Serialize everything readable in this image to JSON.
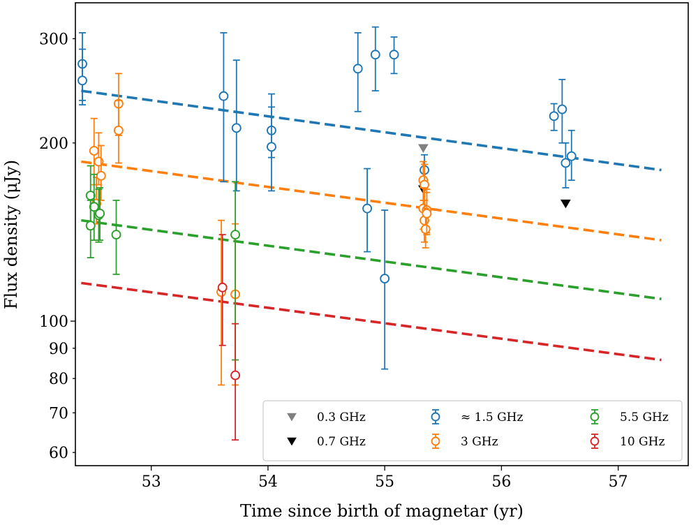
{
  "chart_data": {
    "type": "scatter",
    "title": "",
    "xlabel": "Time since birth of magnetar (yr)",
    "ylabel": "Flux density (μJy)",
    "yscale": "log",
    "xlim": [
      52.35,
      57.6
    ],
    "ylim": [
      57,
      345
    ],
    "xticks": [
      53,
      54,
      55,
      56,
      57
    ],
    "xtick_labels": [
      "53",
      "54",
      "55",
      "56",
      "57"
    ],
    "yticks": [
      60,
      70,
      80,
      90,
      100,
      200,
      300
    ],
    "ytick_labels": [
      "60",
      "70",
      "80",
      "90",
      "100",
      "200",
      "300"
    ],
    "grid": false,
    "legend_position": "lower-right",
    "series": [
      {
        "name": "0.3 GHz",
        "color": "#808080",
        "marker": "triangle-down",
        "kind": "upper_limit",
        "points": [
          {
            "x": 55.33,
            "y": 196
          }
        ]
      },
      {
        "name": "0.7 GHz",
        "color": "#000000",
        "marker": "triangle-down",
        "kind": "upper_limit",
        "points": [
          {
            "x": 55.33,
            "y": 167
          },
          {
            "x": 56.55,
            "y": 158
          }
        ]
      },
      {
        "name": "≈ 1.5 GHz",
        "color": "#1f77b4",
        "marker": "circle-open",
        "kind": "errorbar",
        "fit": [
          [
            52.4,
            245
          ],
          [
            57.37,
            180
          ]
        ],
        "points": [
          {
            "x": 52.41,
            "y": 272,
            "lo": 236,
            "hi": 288
          },
          {
            "x": 52.41,
            "y": 255,
            "lo": 232,
            "hi": 307
          },
          {
            "x": 53.62,
            "y": 240,
            "lo": 172,
            "hi": 307
          },
          {
            "x": 53.73,
            "y": 212,
            "lo": 166,
            "hi": 276
          },
          {
            "x": 54.03,
            "y": 210,
            "lo": 189,
            "hi": 242
          },
          {
            "x": 54.03,
            "y": 197,
            "lo": 166,
            "hi": 230
          },
          {
            "x": 54.77,
            "y": 267,
            "lo": 226,
            "hi": 307
          },
          {
            "x": 54.85,
            "y": 155,
            "lo": 131,
            "hi": 181
          },
          {
            "x": 54.92,
            "y": 282,
            "lo": 245,
            "hi": 314
          },
          {
            "x": 55.0,
            "y": 118,
            "lo": 83,
            "hi": 154
          },
          {
            "x": 55.08,
            "y": 282,
            "lo": 262,
            "hi": 302
          },
          {
            "x": 55.34,
            "y": 180,
            "lo": 169,
            "hi": 191
          },
          {
            "x": 56.45,
            "y": 222,
            "lo": 210,
            "hi": 233
          },
          {
            "x": 56.52,
            "y": 228,
            "lo": 200,
            "hi": 256
          },
          {
            "x": 56.55,
            "y": 185,
            "lo": 168,
            "hi": 200
          },
          {
            "x": 56.6,
            "y": 190,
            "lo": 173,
            "hi": 210
          }
        ]
      },
      {
        "name": "3 GHz",
        "color": "#ff7f0e",
        "marker": "circle-open",
        "kind": "errorbar",
        "fit": [
          [
            52.4,
            186
          ],
          [
            57.37,
            137
          ]
        ],
        "points": [
          {
            "x": 52.51,
            "y": 194,
            "lo": 170,
            "hi": 220
          },
          {
            "x": 52.53,
            "y": 158,
            "lo": 146,
            "hi": 175
          },
          {
            "x": 52.55,
            "y": 186,
            "lo": 170,
            "hi": 208
          },
          {
            "x": 52.57,
            "y": 176,
            "lo": 160,
            "hi": 198
          },
          {
            "x": 52.72,
            "y": 233,
            "lo": 206,
            "hi": 262
          },
          {
            "x": 52.72,
            "y": 210,
            "lo": 185,
            "hi": 236
          },
          {
            "x": 53.6,
            "y": 112,
            "lo": 78,
            "hi": 148
          },
          {
            "x": 53.72,
            "y": 111,
            "lo": 78,
            "hi": 146
          },
          {
            "x": 55.33,
            "y": 173,
            "lo": 160,
            "hi": 186
          },
          {
            "x": 55.34,
            "y": 170,
            "lo": 156,
            "hi": 184
          },
          {
            "x": 55.33,
            "y": 155,
            "lo": 143,
            "hi": 168
          },
          {
            "x": 55.36,
            "y": 154,
            "lo": 141,
            "hi": 167
          },
          {
            "x": 55.34,
            "y": 148,
            "lo": 136,
            "hi": 160
          },
          {
            "x": 55.35,
            "y": 143,
            "lo": 133,
            "hi": 155
          },
          {
            "x": 55.36,
            "y": 152,
            "lo": 140,
            "hi": 165
          }
        ]
      },
      {
        "name": "5.5 GHz",
        "color": "#2ca02c",
        "marker": "circle-open",
        "kind": "errorbar",
        "fit": [
          [
            52.4,
            148
          ],
          [
            57.37,
            109
          ]
        ],
        "points": [
          {
            "x": 52.48,
            "y": 163,
            "lo": 143,
            "hi": 183
          },
          {
            "x": 52.51,
            "y": 156,
            "lo": 137,
            "hi": 177
          },
          {
            "x": 52.48,
            "y": 145,
            "lo": 128,
            "hi": 160
          },
          {
            "x": 52.55,
            "y": 151,
            "lo": 136,
            "hi": 167
          },
          {
            "x": 52.56,
            "y": 152,
            "lo": 137,
            "hi": 168
          },
          {
            "x": 52.7,
            "y": 140,
            "lo": 120,
            "hi": 160
          },
          {
            "x": 53.72,
            "y": 140,
            "lo": 86,
            "hi": 172
          }
        ]
      },
      {
        "name": "10 GHz",
        "color": "#d62728",
        "marker": "circle-open",
        "kind": "errorbar",
        "fit": [
          [
            52.4,
            116
          ],
          [
            57.37,
            86
          ]
        ],
        "points": [
          {
            "x": 53.61,
            "y": 114,
            "lo": 91,
            "hi": 140
          },
          {
            "x": 53.72,
            "y": 81,
            "lo": 63,
            "hi": 99
          }
        ]
      }
    ],
    "legend": [
      {
        "label": "0.3 GHz",
        "series": 0
      },
      {
        "label": "0.7 GHz",
        "series": 1
      },
      {
        "label": "≈ 1.5 GHz",
        "series": 2
      },
      {
        "label": "3 GHz",
        "series": 3
      },
      {
        "label": "5.5 GHz",
        "series": 4
      },
      {
        "label": "10 GHz",
        "series": 5
      }
    ]
  }
}
